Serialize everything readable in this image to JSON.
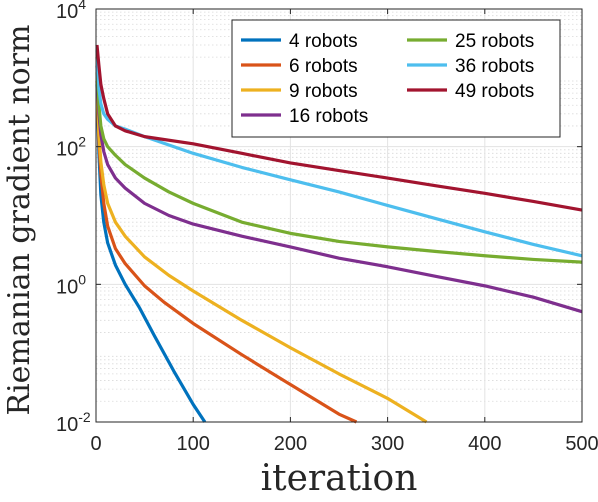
{
  "chart_data": {
    "type": "line",
    "title": "",
    "xlabel": "iteration",
    "ylabel": "Riemanian gradient norm",
    "xlim": [
      0,
      500
    ],
    "ylim": [
      0.01,
      10000
    ],
    "yscale": "log",
    "grid": true,
    "minor_grid": true,
    "x_ticks": [
      {
        "value": 0,
        "label": "0"
      },
      {
        "value": 100,
        "label": "100"
      },
      {
        "value": 200,
        "label": "200"
      },
      {
        "value": 300,
        "label": "300"
      },
      {
        "value": 400,
        "label": "400"
      },
      {
        "value": 500,
        "label": "500"
      }
    ],
    "y_ticks": [
      {
        "value": 0.01,
        "base": "10",
        "exp": "-2"
      },
      {
        "value": 1,
        "base": "10",
        "exp": "0"
      },
      {
        "value": 100,
        "base": "10",
        "exp": "2"
      },
      {
        "value": 10000,
        "base": "10",
        "exp": "4"
      }
    ],
    "legend_position": "top-right",
    "series": [
      {
        "name": "4 robots",
        "color": "#0072BD",
        "points": [
          [
            1,
            800
          ],
          [
            3,
            80
          ],
          [
            5,
            20
          ],
          [
            8,
            8
          ],
          [
            12,
            4
          ],
          [
            20,
            1.9
          ],
          [
            30,
            1.0
          ],
          [
            45,
            0.45
          ],
          [
            60,
            0.18
          ],
          [
            80,
            0.055
          ],
          [
            100,
            0.018
          ],
          [
            112,
            0.01
          ]
        ]
      },
      {
        "name": "6 robots",
        "color": "#D95319",
        "points": [
          [
            1,
            900
          ],
          [
            3,
            120
          ],
          [
            5,
            40
          ],
          [
            8,
            15
          ],
          [
            12,
            7
          ],
          [
            20,
            3.3
          ],
          [
            30,
            2.0
          ],
          [
            50,
            0.95
          ],
          [
            70,
            0.55
          ],
          [
            100,
            0.27
          ],
          [
            150,
            0.095
          ],
          [
            200,
            0.035
          ],
          [
            250,
            0.013
          ],
          [
            268,
            0.01
          ]
        ]
      },
      {
        "name": "9 robots",
        "color": "#EDB120",
        "points": [
          [
            1,
            1200
          ],
          [
            3,
            150
          ],
          [
            5,
            60
          ],
          [
            8,
            28
          ],
          [
            12,
            15
          ],
          [
            20,
            8
          ],
          [
            30,
            5
          ],
          [
            50,
            2.5
          ],
          [
            75,
            1.35
          ],
          [
            100,
            0.8
          ],
          [
            150,
            0.3
          ],
          [
            200,
            0.12
          ],
          [
            250,
            0.05
          ],
          [
            300,
            0.022
          ],
          [
            340,
            0.01
          ]
        ]
      },
      {
        "name": "16 robots",
        "color": "#7E2F8E",
        "points": [
          [
            1,
            1500
          ],
          [
            3,
            300
          ],
          [
            5,
            150
          ],
          [
            8,
            85
          ],
          [
            12,
            55
          ],
          [
            20,
            35
          ],
          [
            30,
            25
          ],
          [
            50,
            15
          ],
          [
            75,
            10
          ],
          [
            100,
            7.5
          ],
          [
            150,
            5
          ],
          [
            200,
            3.5
          ],
          [
            250,
            2.4
          ],
          [
            300,
            1.8
          ],
          [
            350,
            1.3
          ],
          [
            400,
            0.95
          ],
          [
            450,
            0.65
          ],
          [
            500,
            0.4
          ]
        ]
      },
      {
        "name": "25 robots",
        "color": "#77AC30",
        "points": [
          [
            1,
            2000
          ],
          [
            3,
            400
          ],
          [
            5,
            200
          ],
          [
            8,
            130
          ],
          [
            12,
            100
          ],
          [
            20,
            75
          ],
          [
            30,
            55
          ],
          [
            50,
            35
          ],
          [
            75,
            22
          ],
          [
            100,
            15
          ],
          [
            150,
            8
          ],
          [
            200,
            5.5
          ],
          [
            250,
            4.2
          ],
          [
            300,
            3.5
          ],
          [
            350,
            3
          ],
          [
            400,
            2.6
          ],
          [
            450,
            2.3
          ],
          [
            500,
            2.1
          ]
        ]
      },
      {
        "name": "36 robots",
        "color": "#4DBEEE",
        "points": [
          [
            1,
            2500
          ],
          [
            3,
            700
          ],
          [
            5,
            420
          ],
          [
            8,
            300
          ],
          [
            12,
            250
          ],
          [
            20,
            200
          ],
          [
            30,
            180
          ],
          [
            50,
            140
          ],
          [
            100,
            80
          ],
          [
            150,
            50
          ],
          [
            200,
            33
          ],
          [
            250,
            22
          ],
          [
            300,
            14
          ],
          [
            350,
            9
          ],
          [
            400,
            5.8
          ],
          [
            450,
            3.8
          ],
          [
            500,
            2.6
          ]
        ]
      },
      {
        "name": "49 robots",
        "color": "#A2142F",
        "points": [
          [
            1,
            3000
          ],
          [
            3,
            1500
          ],
          [
            5,
            800
          ],
          [
            8,
            500
          ],
          [
            12,
            300
          ],
          [
            20,
            200
          ],
          [
            30,
            170
          ],
          [
            50,
            140
          ],
          [
            100,
            110
          ],
          [
            150,
            80
          ],
          [
            200,
            58
          ],
          [
            250,
            45
          ],
          [
            300,
            35
          ],
          [
            350,
            27
          ],
          [
            400,
            21
          ],
          [
            450,
            16
          ],
          [
            500,
            12
          ]
        ]
      }
    ]
  }
}
